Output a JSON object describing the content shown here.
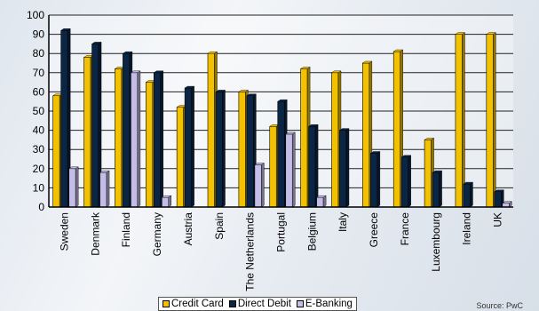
{
  "chart_data": {
    "type": "bar",
    "categories": [
      "Sweden",
      "Denmark",
      "Finland",
      "Germany",
      "Austria",
      "Spain",
      "The Netherlands",
      "Portugal",
      "Belgium",
      "Italy",
      "Greece",
      "France",
      "Luxembourg",
      "Ireland",
      "UK"
    ],
    "series": [
      {
        "name": "Credit Card",
        "color": "#f2c200",
        "values": [
          58,
          78,
          72,
          65,
          52,
          80,
          60,
          42,
          72,
          70,
          75,
          81,
          35,
          90,
          90
        ]
      },
      {
        "name": "Direct Debit",
        "color": "#0b2545",
        "values": [
          92,
          85,
          80,
          70,
          62,
          60,
          58,
          55,
          42,
          40,
          28,
          26,
          18,
          12,
          8
        ]
      },
      {
        "name": "E-Banking",
        "color": "#c4bde8",
        "values": [
          20,
          18,
          70,
          5,
          0,
          0,
          22,
          38,
          5,
          0,
          0,
          0,
          0,
          0,
          2
        ]
      }
    ],
    "title": "",
    "xlabel": "",
    "ylabel": "",
    "ylim": [
      0,
      100
    ],
    "yticks": [
      0,
      10,
      20,
      30,
      40,
      50,
      60,
      70,
      80,
      90,
      100
    ],
    "grid": true,
    "legend_position": "bottom"
  },
  "source": "Source: PwC"
}
